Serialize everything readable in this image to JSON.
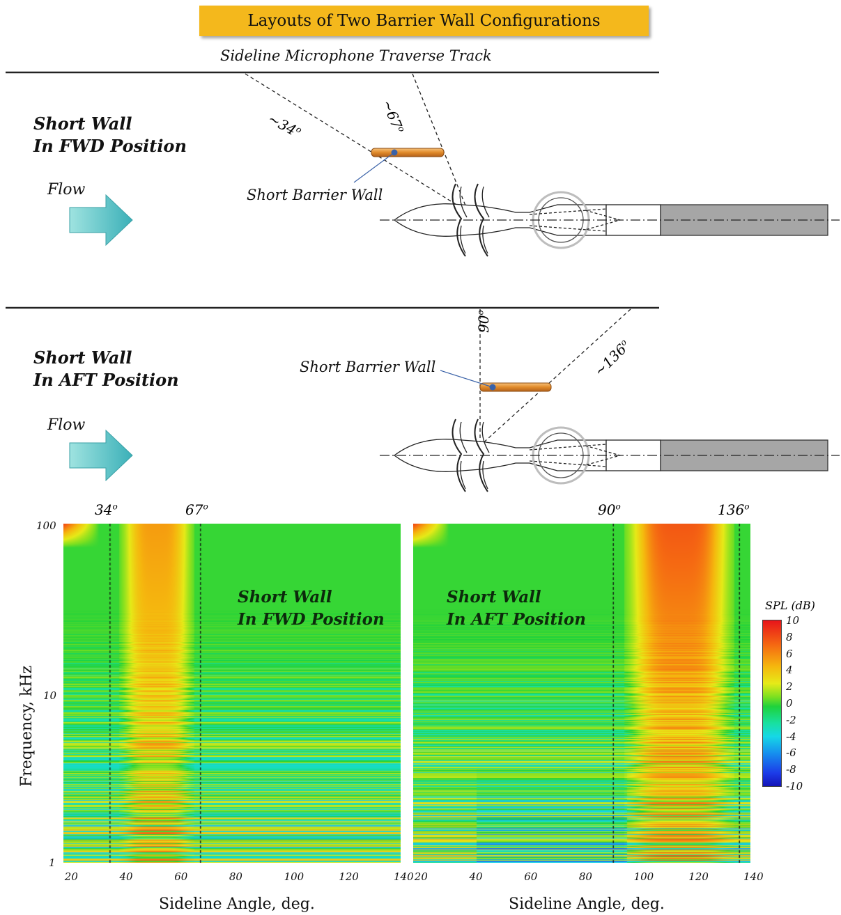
{
  "title": "Layouts of Two Barrier Wall Configurations",
  "track_label": "Sideline Microphone Traverse Track",
  "flow_label": "Flow",
  "configs": [
    {
      "label_line1": "Short Wall",
      "label_line2": "In FWD Position",
      "wall_label": "Short Barrier Wall",
      "angle_a": "~34",
      "angle_b": "~67"
    },
    {
      "label_line1": "Short Wall",
      "label_line2": "In AFT Position",
      "wall_label": "Short Barrier Wall",
      "angle_a": "90",
      "angle_b": "~136"
    }
  ],
  "chart_data": [
    {
      "type": "heatmap",
      "overlay_line1": "Short Wall",
      "overlay_line2": "In FWD Position",
      "xlabel": "Sideline Angle, deg.",
      "ylabel": "Frequency, kHz",
      "x_ticks": [
        "20",
        "40",
        "60",
        "80",
        "100",
        "120",
        "140"
      ],
      "y_ticks": [
        "100",
        "10",
        "1"
      ],
      "xlim": [
        17,
        140
      ],
      "ylim": [
        1,
        100
      ],
      "yscale": "log",
      "marker_lines": [
        {
          "x": 34,
          "label": "34"
        },
        {
          "x": 67,
          "label": "67"
        }
      ],
      "high_region": [
        40,
        62
      ]
    },
    {
      "type": "heatmap",
      "overlay_line1": "Short Wall",
      "overlay_line2": "In AFT Position",
      "xlabel": "Sideline Angle, deg.",
      "ylabel": "",
      "x_ticks": [
        "20",
        "40",
        "60",
        "80",
        "100",
        "120",
        "140"
      ],
      "y_ticks": [],
      "xlim": [
        17,
        140
      ],
      "ylim": [
        1,
        100
      ],
      "yscale": "log",
      "marker_lines": [
        {
          "x": 90,
          "label": "90"
        },
        {
          "x": 136,
          "label": "136"
        }
      ],
      "high_region": [
        98,
        130
      ]
    }
  ],
  "colorbar": {
    "label": "SPL (dB)",
    "ticks": [
      "10",
      "8",
      "6",
      "4",
      "2",
      "0",
      "-2",
      "-4",
      "-6",
      "-8",
      "-10"
    ],
    "range": [
      -10,
      10
    ]
  },
  "colors": {
    "banner": "#f4b81c",
    "wall": "#e08a2a",
    "flow_arrow": "#5cc8c4",
    "nozzle_fill": "#a6a6a6"
  }
}
